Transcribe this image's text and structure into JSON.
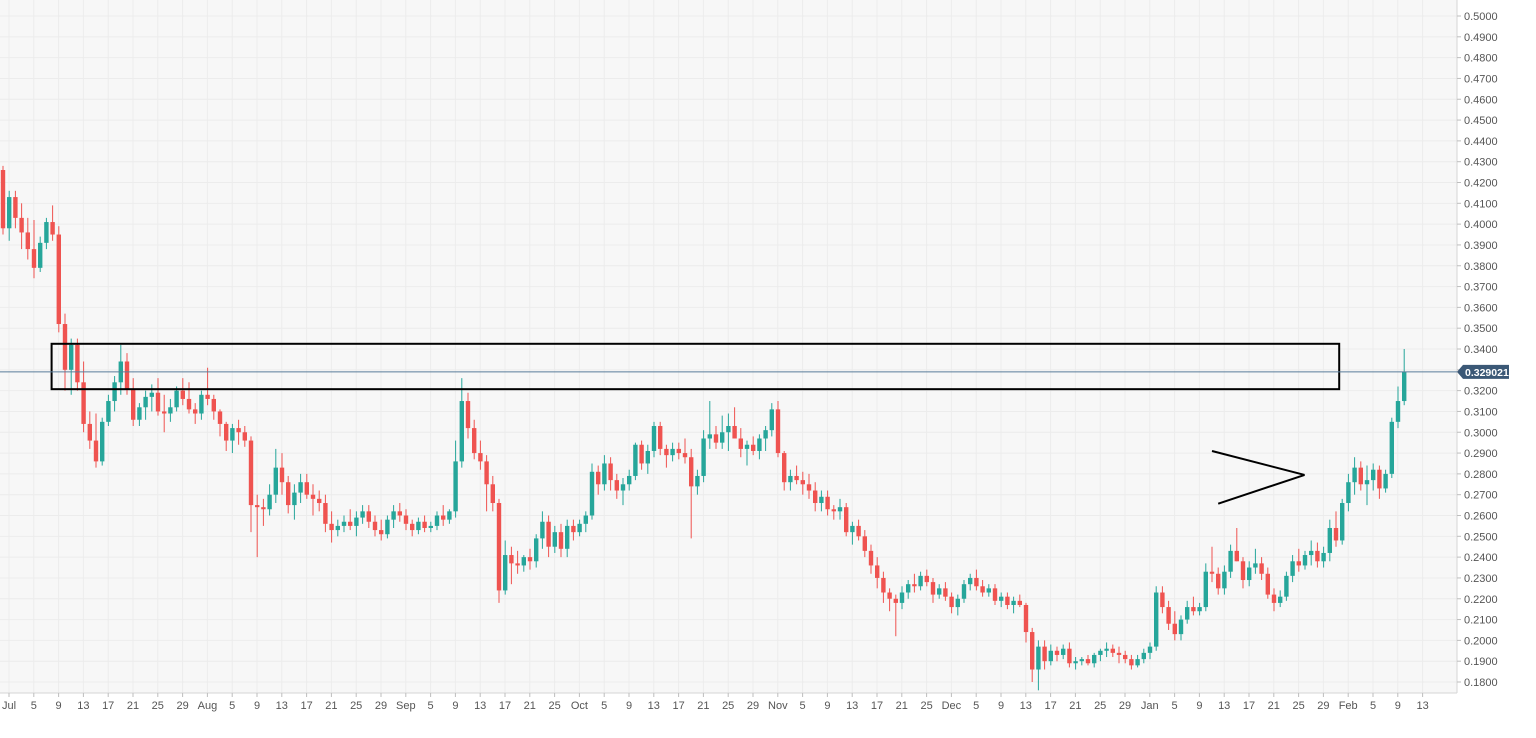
{
  "chart_data": {
    "type": "candlestick",
    "title": "",
    "xlabel": "",
    "ylabel": "",
    "ylim": [
      0.175,
      0.505
    ],
    "grid": true,
    "y_ticks": [
      "0.5000",
      "0.4900",
      "0.4800",
      "0.4700",
      "0.4600",
      "0.4500",
      "0.4400",
      "0.4300",
      "0.4200",
      "0.4100",
      "0.4000",
      "0.3900",
      "0.3800",
      "0.3700",
      "0.3600",
      "0.3500",
      "0.3400",
      "0.3300",
      "0.3200",
      "0.3100",
      "0.3000",
      "0.2900",
      "0.2800",
      "0.2700",
      "0.2600",
      "0.2500",
      "0.2400",
      "0.2300",
      "0.2200",
      "0.2100",
      "0.2000",
      "0.1900",
      "0.1800"
    ],
    "x_ticks": [
      "Jul",
      "5",
      "9",
      "13",
      "17",
      "21",
      "25",
      "29",
      "Aug",
      "5",
      "9",
      "13",
      "17",
      "21",
      "25",
      "29",
      "Sep",
      "5",
      "9",
      "13",
      "17",
      "21",
      "25",
      "Oct",
      "5",
      "9",
      "13",
      "17",
      "21",
      "25",
      "29",
      "Nov",
      "5",
      "9",
      "13",
      "17",
      "21",
      "25",
      "Dec",
      "5",
      "9",
      "13",
      "17",
      "21",
      "25",
      "29",
      "Jan",
      "5",
      "9",
      "13",
      "17",
      "21",
      "25",
      "29",
      "Feb",
      "5",
      "9",
      "13"
    ],
    "last_price": "0.329021",
    "colors": {
      "up": "#26a69a",
      "down": "#ef5350",
      "grid": "#ececec",
      "price_line": "#5a7d9a",
      "price_label": "#3b5876",
      "annotation": "#000000"
    },
    "candles_ohlc": [
      [
        0.426,
        0.428,
        0.395,
        0.398
      ],
      [
        0.398,
        0.416,
        0.392,
        0.413
      ],
      [
        0.413,
        0.416,
        0.398,
        0.403
      ],
      [
        0.403,
        0.41,
        0.388,
        0.396
      ],
      [
        0.396,
        0.403,
        0.383,
        0.388
      ],
      [
        0.388,
        0.402,
        0.374,
        0.379
      ],
      [
        0.379,
        0.394,
        0.377,
        0.391
      ],
      [
        0.391,
        0.403,
        0.388,
        0.401
      ],
      [
        0.401,
        0.409,
        0.392,
        0.395
      ],
      [
        0.395,
        0.399,
        0.348,
        0.352
      ],
      [
        0.352,
        0.357,
        0.32,
        0.33
      ],
      [
        0.33,
        0.345,
        0.318,
        0.342
      ],
      [
        0.342,
        0.345,
        0.32,
        0.324
      ],
      [
        0.324,
        0.334,
        0.3,
        0.304
      ],
      [
        0.304,
        0.31,
        0.292,
        0.296
      ],
      [
        0.296,
        0.309,
        0.283,
        0.286
      ],
      [
        0.286,
        0.307,
        0.284,
        0.305
      ],
      [
        0.305,
        0.318,
        0.303,
        0.315
      ],
      [
        0.315,
        0.327,
        0.31,
        0.324
      ],
      [
        0.324,
        0.342,
        0.318,
        0.334
      ],
      [
        0.334,
        0.338,
        0.318,
        0.321
      ],
      [
        0.321,
        0.326,
        0.303,
        0.306
      ],
      [
        0.306,
        0.314,
        0.303,
        0.312
      ],
      [
        0.312,
        0.32,
        0.306,
        0.317
      ],
      [
        0.317,
        0.323,
        0.31,
        0.319
      ],
      [
        0.319,
        0.326,
        0.308,
        0.31
      ],
      [
        0.31,
        0.318,
        0.3,
        0.309
      ],
      [
        0.309,
        0.316,
        0.305,
        0.312
      ],
      [
        0.312,
        0.322,
        0.31,
        0.32
      ],
      [
        0.32,
        0.326,
        0.313,
        0.316
      ],
      [
        0.316,
        0.324,
        0.309,
        0.311
      ],
      [
        0.311,
        0.314,
        0.304,
        0.309
      ],
      [
        0.309,
        0.32,
        0.306,
        0.318
      ],
      [
        0.318,
        0.331,
        0.313,
        0.316
      ],
      [
        0.316,
        0.318,
        0.306,
        0.31
      ],
      [
        0.31,
        0.311,
        0.298,
        0.304
      ],
      [
        0.304,
        0.305,
        0.291,
        0.296
      ],
      [
        0.296,
        0.304,
        0.29,
        0.302
      ],
      [
        0.302,
        0.306,
        0.294,
        0.3
      ],
      [
        0.3,
        0.303,
        0.293,
        0.296
      ],
      [
        0.296,
        0.298,
        0.252,
        0.265
      ],
      [
        0.265,
        0.27,
        0.24,
        0.264
      ],
      [
        0.264,
        0.268,
        0.255,
        0.263
      ],
      [
        0.263,
        0.275,
        0.26,
        0.27
      ],
      [
        0.27,
        0.292,
        0.266,
        0.283
      ],
      [
        0.283,
        0.29,
        0.27,
        0.276
      ],
      [
        0.276,
        0.279,
        0.261,
        0.265
      ],
      [
        0.265,
        0.275,
        0.258,
        0.271
      ],
      [
        0.271,
        0.28,
        0.266,
        0.276
      ],
      [
        0.276,
        0.28,
        0.268,
        0.27
      ],
      [
        0.27,
        0.275,
        0.26,
        0.268
      ],
      [
        0.268,
        0.272,
        0.262,
        0.266
      ],
      [
        0.266,
        0.27,
        0.252,
        0.256
      ],
      [
        0.256,
        0.262,
        0.247,
        0.253
      ],
      [
        0.253,
        0.258,
        0.25,
        0.255
      ],
      [
        0.255,
        0.26,
        0.252,
        0.257
      ],
      [
        0.257,
        0.263,
        0.253,
        0.255
      ],
      [
        0.255,
        0.262,
        0.25,
        0.259
      ],
      [
        0.259,
        0.265,
        0.256,
        0.262
      ],
      [
        0.262,
        0.265,
        0.254,
        0.257
      ],
      [
        0.257,
        0.26,
        0.25,
        0.253
      ],
      [
        0.253,
        0.258,
        0.248,
        0.251
      ],
      [
        0.251,
        0.26,
        0.249,
        0.258
      ],
      [
        0.258,
        0.265,
        0.254,
        0.262
      ],
      [
        0.262,
        0.266,
        0.257,
        0.26
      ],
      [
        0.26,
        0.263,
        0.253,
        0.256
      ],
      [
        0.256,
        0.258,
        0.25,
        0.253
      ],
      [
        0.253,
        0.259,
        0.251,
        0.257
      ],
      [
        0.257,
        0.26,
        0.252,
        0.254
      ],
      [
        0.254,
        0.257,
        0.252,
        0.255
      ],
      [
        0.255,
        0.262,
        0.253,
        0.26
      ],
      [
        0.26,
        0.265,
        0.255,
        0.258
      ],
      [
        0.258,
        0.263,
        0.256,
        0.262
      ],
      [
        0.262,
        0.296,
        0.259,
        0.286
      ],
      [
        0.286,
        0.326,
        0.283,
        0.315
      ],
      [
        0.315,
        0.319,
        0.297,
        0.302
      ],
      [
        0.302,
        0.306,
        0.287,
        0.29
      ],
      [
        0.29,
        0.296,
        0.282,
        0.286
      ],
      [
        0.286,
        0.289,
        0.262,
        0.275
      ],
      [
        0.275,
        0.279,
        0.262,
        0.266
      ],
      [
        0.266,
        0.268,
        0.218,
        0.224
      ],
      [
        0.224,
        0.248,
        0.222,
        0.241
      ],
      [
        0.241,
        0.245,
        0.227,
        0.237
      ],
      [
        0.237,
        0.243,
        0.232,
        0.236
      ],
      [
        0.236,
        0.241,
        0.233,
        0.24
      ],
      [
        0.24,
        0.244,
        0.234,
        0.238
      ],
      [
        0.238,
        0.251,
        0.235,
        0.249
      ],
      [
        0.249,
        0.262,
        0.244,
        0.257
      ],
      [
        0.257,
        0.26,
        0.24,
        0.245
      ],
      [
        0.245,
        0.255,
        0.242,
        0.252
      ],
      [
        0.252,
        0.256,
        0.24,
        0.244
      ],
      [
        0.244,
        0.258,
        0.24,
        0.255
      ],
      [
        0.255,
        0.258,
        0.248,
        0.252
      ],
      [
        0.252,
        0.258,
        0.25,
        0.256
      ],
      [
        0.256,
        0.262,
        0.252,
        0.26
      ],
      [
        0.26,
        0.285,
        0.258,
        0.281
      ],
      [
        0.281,
        0.284,
        0.27,
        0.275
      ],
      [
        0.275,
        0.289,
        0.272,
        0.285
      ],
      [
        0.285,
        0.288,
        0.272,
        0.277
      ],
      [
        0.277,
        0.28,
        0.268,
        0.272
      ],
      [
        0.272,
        0.278,
        0.265,
        0.275
      ],
      [
        0.275,
        0.282,
        0.272,
        0.279
      ],
      [
        0.279,
        0.295,
        0.277,
        0.294
      ],
      [
        0.294,
        0.296,
        0.282,
        0.285
      ],
      [
        0.285,
        0.294,
        0.28,
        0.291
      ],
      [
        0.291,
        0.305,
        0.288,
        0.303
      ],
      [
        0.303,
        0.305,
        0.289,
        0.292
      ],
      [
        0.292,
        0.294,
        0.283,
        0.289
      ],
      [
        0.289,
        0.295,
        0.286,
        0.292
      ],
      [
        0.292,
        0.295,
        0.287,
        0.29
      ],
      [
        0.29,
        0.297,
        0.285,
        0.288
      ],
      [
        0.288,
        0.292,
        0.249,
        0.274
      ],
      [
        0.274,
        0.282,
        0.27,
        0.279
      ],
      [
        0.279,
        0.301,
        0.276,
        0.297
      ],
      [
        0.297,
        0.315,
        0.292,
        0.299
      ],
      [
        0.299,
        0.303,
        0.292,
        0.295
      ],
      [
        0.295,
        0.308,
        0.292,
        0.3
      ],
      [
        0.3,
        0.309,
        0.291,
        0.303
      ],
      [
        0.303,
        0.312,
        0.297,
        0.297
      ],
      [
        0.297,
        0.302,
        0.288,
        0.292
      ],
      [
        0.292,
        0.296,
        0.284,
        0.294
      ],
      [
        0.294,
        0.298,
        0.289,
        0.291
      ],
      [
        0.291,
        0.299,
        0.287,
        0.297
      ],
      [
        0.297,
        0.303,
        0.291,
        0.301
      ],
      [
        0.301,
        0.314,
        0.298,
        0.311
      ],
      [
        0.311,
        0.315,
        0.288,
        0.29
      ],
      [
        0.29,
        0.291,
        0.272,
        0.276
      ],
      [
        0.276,
        0.282,
        0.272,
        0.279
      ],
      [
        0.279,
        0.284,
        0.275,
        0.277
      ],
      [
        0.277,
        0.281,
        0.27,
        0.275
      ],
      [
        0.275,
        0.28,
        0.268,
        0.272
      ],
      [
        0.272,
        0.276,
        0.262,
        0.266
      ],
      [
        0.266,
        0.272,
        0.262,
        0.269
      ],
      [
        0.269,
        0.272,
        0.26,
        0.263
      ],
      [
        0.263,
        0.265,
        0.258,
        0.262
      ],
      [
        0.262,
        0.268,
        0.258,
        0.264
      ],
      [
        0.264,
        0.266,
        0.25,
        0.252
      ],
      [
        0.252,
        0.257,
        0.246,
        0.255
      ],
      [
        0.255,
        0.258,
        0.248,
        0.25
      ],
      [
        0.25,
        0.253,
        0.24,
        0.243
      ],
      [
        0.243,
        0.246,
        0.232,
        0.236
      ],
      [
        0.236,
        0.24,
        0.225,
        0.23
      ],
      [
        0.23,
        0.233,
        0.218,
        0.223
      ],
      [
        0.223,
        0.225,
        0.214,
        0.22
      ],
      [
        0.22,
        0.222,
        0.202,
        0.218
      ],
      [
        0.218,
        0.226,
        0.215,
        0.223
      ],
      [
        0.223,
        0.229,
        0.22,
        0.227
      ],
      [
        0.227,
        0.232,
        0.223,
        0.226
      ],
      [
        0.226,
        0.233,
        0.224,
        0.231
      ],
      [
        0.231,
        0.234,
        0.226,
        0.228
      ],
      [
        0.228,
        0.23,
        0.218,
        0.222
      ],
      [
        0.222,
        0.227,
        0.22,
        0.225
      ],
      [
        0.225,
        0.228,
        0.219,
        0.221
      ],
      [
        0.221,
        0.223,
        0.213,
        0.216
      ],
      [
        0.216,
        0.222,
        0.212,
        0.22
      ],
      [
        0.22,
        0.229,
        0.218,
        0.227
      ],
      [
        0.227,
        0.232,
        0.224,
        0.23
      ],
      [
        0.23,
        0.234,
        0.224,
        0.226
      ],
      [
        0.226,
        0.229,
        0.221,
        0.223
      ],
      [
        0.223,
        0.227,
        0.221,
        0.225
      ],
      [
        0.225,
        0.227,
        0.217,
        0.219
      ],
      [
        0.219,
        0.223,
        0.216,
        0.221
      ],
      [
        0.221,
        0.223,
        0.215,
        0.217
      ],
      [
        0.217,
        0.221,
        0.213,
        0.219
      ],
      [
        0.219,
        0.222,
        0.216,
        0.217
      ],
      [
        0.217,
        0.218,
        0.199,
        0.204
      ],
      [
        0.204,
        0.206,
        0.18,
        0.186
      ],
      [
        0.186,
        0.2,
        0.176,
        0.197
      ],
      [
        0.197,
        0.2,
        0.186,
        0.19
      ],
      [
        0.19,
        0.198,
        0.188,
        0.195
      ],
      [
        0.195,
        0.197,
        0.19,
        0.193
      ],
      [
        0.193,
        0.198,
        0.191,
        0.196
      ],
      [
        0.196,
        0.199,
        0.187,
        0.189
      ],
      [
        0.189,
        0.192,
        0.186,
        0.19
      ],
      [
        0.19,
        0.192,
        0.188,
        0.191
      ],
      [
        0.191,
        0.193,
        0.188,
        0.189
      ],
      [
        0.189,
        0.194,
        0.187,
        0.193
      ],
      [
        0.193,
        0.196,
        0.19,
        0.195
      ],
      [
        0.195,
        0.199,
        0.192,
        0.196
      ],
      [
        0.196,
        0.198,
        0.192,
        0.194
      ],
      [
        0.194,
        0.197,
        0.189,
        0.193
      ],
      [
        0.193,
        0.195,
        0.189,
        0.191
      ],
      [
        0.191,
        0.193,
        0.186,
        0.188
      ],
      [
        0.188,
        0.193,
        0.187,
        0.191
      ],
      [
        0.191,
        0.196,
        0.189,
        0.194
      ],
      [
        0.194,
        0.199,
        0.191,
        0.197
      ],
      [
        0.197,
        0.226,
        0.195,
        0.223
      ],
      [
        0.223,
        0.226,
        0.213,
        0.216
      ],
      [
        0.216,
        0.219,
        0.205,
        0.208
      ],
      [
        0.208,
        0.214,
        0.2,
        0.203
      ],
      [
        0.203,
        0.212,
        0.2,
        0.21
      ],
      [
        0.21,
        0.219,
        0.208,
        0.216
      ],
      [
        0.216,
        0.221,
        0.212,
        0.214
      ],
      [
        0.214,
        0.218,
        0.212,
        0.216
      ],
      [
        0.216,
        0.237,
        0.214,
        0.233
      ],
      [
        0.233,
        0.245,
        0.228,
        0.232
      ],
      [
        0.232,
        0.235,
        0.222,
        0.225
      ],
      [
        0.225,
        0.236,
        0.222,
        0.233
      ],
      [
        0.233,
        0.246,
        0.23,
        0.243
      ],
      [
        0.243,
        0.254,
        0.238,
        0.238
      ],
      [
        0.238,
        0.24,
        0.225,
        0.229
      ],
      [
        0.229,
        0.238,
        0.226,
        0.235
      ],
      [
        0.235,
        0.244,
        0.232,
        0.237
      ],
      [
        0.237,
        0.24,
        0.229,
        0.232
      ],
      [
        0.232,
        0.235,
        0.22,
        0.222
      ],
      [
        0.222,
        0.225,
        0.214,
        0.218
      ],
      [
        0.218,
        0.224,
        0.216,
        0.221
      ],
      [
        0.221,
        0.233,
        0.219,
        0.231
      ],
      [
        0.231,
        0.241,
        0.228,
        0.238
      ],
      [
        0.238,
        0.244,
        0.233,
        0.236
      ],
      [
        0.236,
        0.243,
        0.234,
        0.241
      ],
      [
        0.241,
        0.248,
        0.236,
        0.243
      ],
      [
        0.243,
        0.247,
        0.235,
        0.238
      ],
      [
        0.238,
        0.245,
        0.235,
        0.242
      ],
      [
        0.242,
        0.258,
        0.238,
        0.254
      ],
      [
        0.254,
        0.262,
        0.245,
        0.248
      ],
      [
        0.248,
        0.268,
        0.246,
        0.266
      ],
      [
        0.266,
        0.28,
        0.262,
        0.276
      ],
      [
        0.276,
        0.288,
        0.27,
        0.283
      ],
      [
        0.283,
        0.286,
        0.272,
        0.275
      ],
      [
        0.275,
        0.284,
        0.265,
        0.277
      ],
      [
        0.277,
        0.285,
        0.272,
        0.282
      ],
      [
        0.282,
        0.284,
        0.268,
        0.273
      ],
      [
        0.273,
        0.282,
        0.271,
        0.28
      ],
      [
        0.28,
        0.307,
        0.278,
        0.305
      ],
      [
        0.305,
        0.322,
        0.302,
        0.315
      ],
      [
        0.315,
        0.34,
        0.313,
        0.329
      ]
    ],
    "annotations": {
      "resistance_zone": {
        "x_start_candle": 8,
        "x_end_candle": 211,
        "y_low": 0.3207,
        "y_high": 0.3425
      },
      "triangle": {
        "apex_candle": 208,
        "apex_price": 0.2795,
        "top_start": [
          195,
          0.291
        ],
        "bottom_start": [
          196,
          0.2657
        ]
      }
    }
  }
}
